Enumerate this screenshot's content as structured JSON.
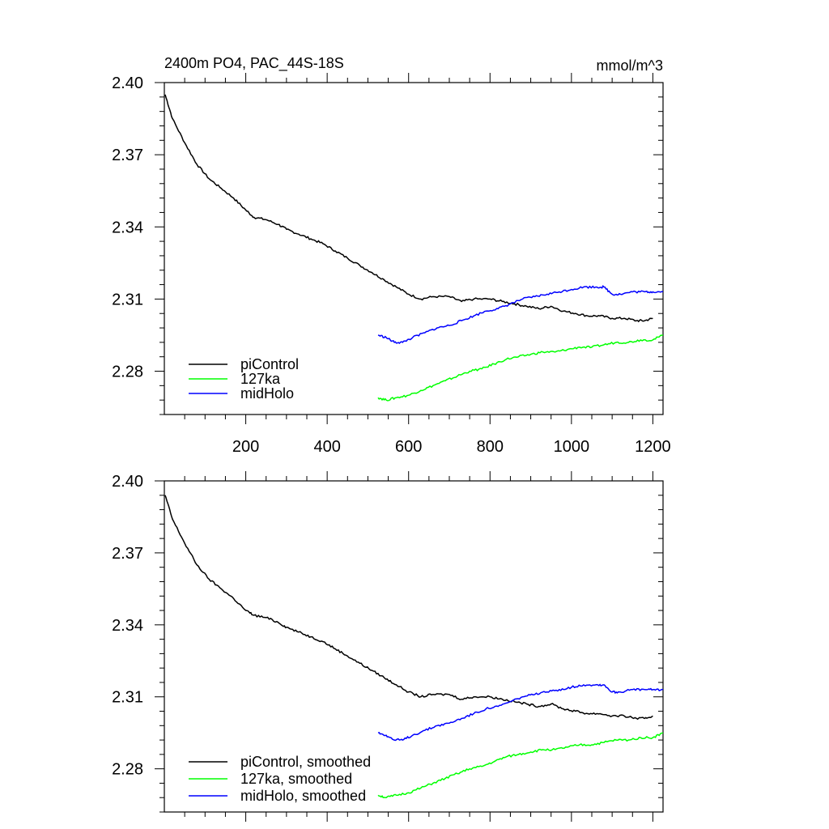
{
  "title_left": "2400m PO4, PAC_44S-18S",
  "title_right": "mmol/m^3",
  "chart_data": [
    {
      "type": "line",
      "title": "2400m PO4, PAC_44S-18S",
      "units": "mmol/m^3",
      "xlim": [
        0,
        1225
      ],
      "ylim": [
        2.262,
        2.4
      ],
      "y_ticks": [
        2.28,
        2.31,
        2.34,
        2.37,
        2.4
      ],
      "y_tick_labels": [
        "2.28",
        "2.31",
        "2.34",
        "2.37",
        "2.40"
      ],
      "x_ticks": [
        200,
        400,
        600,
        800,
        1000,
        1200
      ],
      "x_tick_labels": [
        "200",
        "400",
        "600",
        "800",
        "1000",
        "1200"
      ],
      "legend": "bottom-left",
      "series": [
        {
          "name": "piControl",
          "color": "#000000",
          "points": [
            [
              2,
              2.395
            ],
            [
              20,
              2.385
            ],
            [
              50,
              2.375
            ],
            [
              80,
              2.366
            ],
            [
              110,
              2.36
            ],
            [
              140,
              2.356
            ],
            [
              170,
              2.352
            ],
            [
              200,
              2.347
            ],
            [
              220,
              2.344
            ],
            [
              250,
              2.343
            ],
            [
              280,
              2.341
            ],
            [
              300,
              2.339
            ],
            [
              330,
              2.337
            ],
            [
              360,
              2.335
            ],
            [
              390,
              2.333
            ],
            [
              420,
              2.33
            ],
            [
              450,
              2.327
            ],
            [
              480,
              2.324
            ],
            [
              510,
              2.321
            ],
            [
              540,
              2.318
            ],
            [
              570,
              2.315
            ],
            [
              600,
              2.312
            ],
            [
              630,
              2.31
            ],
            [
              660,
              2.311
            ],
            [
              700,
              2.311
            ],
            [
              730,
              2.309
            ],
            [
              760,
              2.31
            ],
            [
              800,
              2.31
            ],
            [
              830,
              2.309
            ],
            [
              860,
              2.308
            ],
            [
              890,
              2.307
            ],
            [
              920,
              2.306
            ],
            [
              950,
              2.307
            ],
            [
              980,
              2.305
            ],
            [
              1010,
              2.304
            ],
            [
              1040,
              2.303
            ],
            [
              1070,
              2.303
            ],
            [
              1100,
              2.302
            ],
            [
              1130,
              2.302
            ],
            [
              1160,
              2.301
            ],
            [
              1180,
              2.301
            ],
            [
              1200,
              2.302
            ]
          ]
        },
        {
          "name": "127ka",
          "color": "#00ff00",
          "points": [
            [
              525,
              2.269
            ],
            [
              545,
              2.268
            ],
            [
              570,
              2.269
            ],
            [
              600,
              2.27
            ],
            [
              630,
              2.272
            ],
            [
              660,
              2.274
            ],
            [
              690,
              2.276
            ],
            [
              720,
              2.278
            ],
            [
              750,
              2.28
            ],
            [
              780,
              2.281
            ],
            [
              810,
              2.283
            ],
            [
              840,
              2.285
            ],
            [
              870,
              2.286
            ],
            [
              900,
              2.287
            ],
            [
              930,
              2.288
            ],
            [
              960,
              2.288
            ],
            [
              990,
              2.289
            ],
            [
              1020,
              2.29
            ],
            [
              1050,
              2.29
            ],
            [
              1080,
              2.291
            ],
            [
              1110,
              2.292
            ],
            [
              1140,
              2.292
            ],
            [
              1170,
              2.293
            ],
            [
              1200,
              2.293
            ],
            [
              1225,
              2.295
            ]
          ]
        },
        {
          "name": "midHolo",
          "color": "#0000ff",
          "points": [
            [
              525,
              2.295
            ],
            [
              545,
              2.294
            ],
            [
              565,
              2.292
            ],
            [
              585,
              2.292
            ],
            [
              610,
              2.294
            ],
            [
              640,
              2.296
            ],
            [
              670,
              2.298
            ],
            [
              700,
              2.299
            ],
            [
              730,
              2.301
            ],
            [
              760,
              2.303
            ],
            [
              790,
              2.305
            ],
            [
              820,
              2.306
            ],
            [
              850,
              2.308
            ],
            [
              880,
              2.31
            ],
            [
              910,
              2.311
            ],
            [
              940,
              2.312
            ],
            [
              970,
              2.313
            ],
            [
              1000,
              2.314
            ],
            [
              1030,
              2.315
            ],
            [
              1060,
              2.315
            ],
            [
              1080,
              2.315
            ],
            [
              1100,
              2.312
            ],
            [
              1120,
              2.312
            ],
            [
              1150,
              2.313
            ],
            [
              1180,
              2.313
            ],
            [
              1200,
              2.313
            ],
            [
              1225,
              2.313
            ]
          ]
        }
      ]
    },
    {
      "type": "line",
      "xlim": [
        0,
        1225
      ],
      "ylim": [
        2.262,
        2.4
      ],
      "y_ticks": [
        2.28,
        2.31,
        2.34,
        2.37,
        2.4
      ],
      "y_tick_labels": [
        "2.28",
        "2.31",
        "2.34",
        "2.37",
        "2.40"
      ],
      "x_ticks": [
        200,
        400,
        600,
        800,
        1000,
        1200
      ],
      "legend": "bottom-left",
      "series": [
        {
          "name": "piControl, smoothed",
          "color": "#000000",
          "points": [
            [
              2,
              2.394
            ],
            [
              20,
              2.384
            ],
            [
              50,
              2.374
            ],
            [
              80,
              2.365
            ],
            [
              110,
              2.359
            ],
            [
              140,
              2.355
            ],
            [
              170,
              2.351
            ],
            [
              200,
              2.346
            ],
            [
              220,
              2.344
            ],
            [
              250,
              2.343
            ],
            [
              280,
              2.341
            ],
            [
              300,
              2.339
            ],
            [
              330,
              2.337
            ],
            [
              360,
              2.335
            ],
            [
              390,
              2.333
            ],
            [
              420,
              2.33
            ],
            [
              450,
              2.327
            ],
            [
              480,
              2.324
            ],
            [
              510,
              2.321
            ],
            [
              540,
              2.318
            ],
            [
              570,
              2.315
            ],
            [
              600,
              2.312
            ],
            [
              630,
              2.31
            ],
            [
              660,
              2.311
            ],
            [
              700,
              2.311
            ],
            [
              730,
              2.309
            ],
            [
              760,
              2.31
            ],
            [
              800,
              2.31
            ],
            [
              830,
              2.309
            ],
            [
              860,
              2.308
            ],
            [
              890,
              2.307
            ],
            [
              920,
              2.306
            ],
            [
              950,
              2.307
            ],
            [
              980,
              2.305
            ],
            [
              1010,
              2.304
            ],
            [
              1040,
              2.303
            ],
            [
              1070,
              2.303
            ],
            [
              1100,
              2.302
            ],
            [
              1130,
              2.302
            ],
            [
              1160,
              2.301
            ],
            [
              1180,
              2.301
            ],
            [
              1200,
              2.302
            ]
          ]
        },
        {
          "name": "127ka, smoothed",
          "color": "#00ff00",
          "points": [
            [
              525,
              2.269
            ],
            [
              545,
              2.268
            ],
            [
              570,
              2.269
            ],
            [
              600,
              2.27
            ],
            [
              630,
              2.272
            ],
            [
              660,
              2.274
            ],
            [
              690,
              2.276
            ],
            [
              720,
              2.278
            ],
            [
              750,
              2.28
            ],
            [
              780,
              2.281
            ],
            [
              810,
              2.283
            ],
            [
              840,
              2.285
            ],
            [
              870,
              2.286
            ],
            [
              900,
              2.287
            ],
            [
              930,
              2.288
            ],
            [
              960,
              2.288
            ],
            [
              990,
              2.289
            ],
            [
              1020,
              2.29
            ],
            [
              1050,
              2.29
            ],
            [
              1080,
              2.291
            ],
            [
              1110,
              2.292
            ],
            [
              1140,
              2.292
            ],
            [
              1170,
              2.293
            ],
            [
              1200,
              2.293
            ],
            [
              1225,
              2.295
            ]
          ]
        },
        {
          "name": "midHolo, smoothed",
          "color": "#0000ff",
          "points": [
            [
              525,
              2.295
            ],
            [
              545,
              2.294
            ],
            [
              565,
              2.292
            ],
            [
              585,
              2.292
            ],
            [
              610,
              2.294
            ],
            [
              640,
              2.296
            ],
            [
              670,
              2.298
            ],
            [
              700,
              2.299
            ],
            [
              730,
              2.301
            ],
            [
              760,
              2.303
            ],
            [
              790,
              2.305
            ],
            [
              820,
              2.306
            ],
            [
              850,
              2.308
            ],
            [
              880,
              2.31
            ],
            [
              910,
              2.311
            ],
            [
              940,
              2.312
            ],
            [
              970,
              2.313
            ],
            [
              1000,
              2.314
            ],
            [
              1030,
              2.315
            ],
            [
              1060,
              2.315
            ],
            [
              1080,
              2.315
            ],
            [
              1100,
              2.312
            ],
            [
              1120,
              2.312
            ],
            [
              1150,
              2.313
            ],
            [
              1180,
              2.313
            ],
            [
              1200,
              2.313
            ],
            [
              1225,
              2.313
            ]
          ]
        }
      ]
    }
  ]
}
